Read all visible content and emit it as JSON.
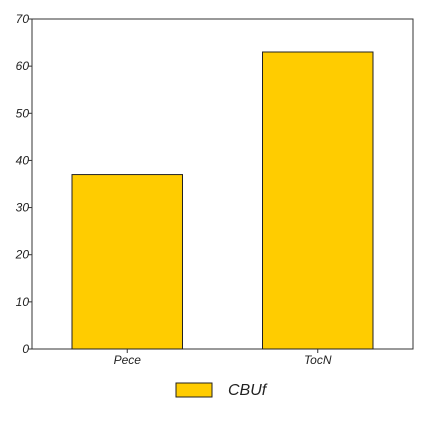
{
  "chart_data": {
    "type": "bar",
    "categories": [
      "Pece",
      "TocN"
    ],
    "series": [
      {
        "name": "CBUf",
        "values": [
          37,
          63
        ]
      }
    ],
    "ylim": [
      0,
      70
    ],
    "yticks": [
      0,
      10,
      20,
      30,
      40,
      50,
      60,
      70
    ],
    "grid": false,
    "legend_position": "bottom-center",
    "colors": {
      "bar_fill": "#FFCC00",
      "bar_stroke": "#222222",
      "axis": "#333333"
    }
  }
}
